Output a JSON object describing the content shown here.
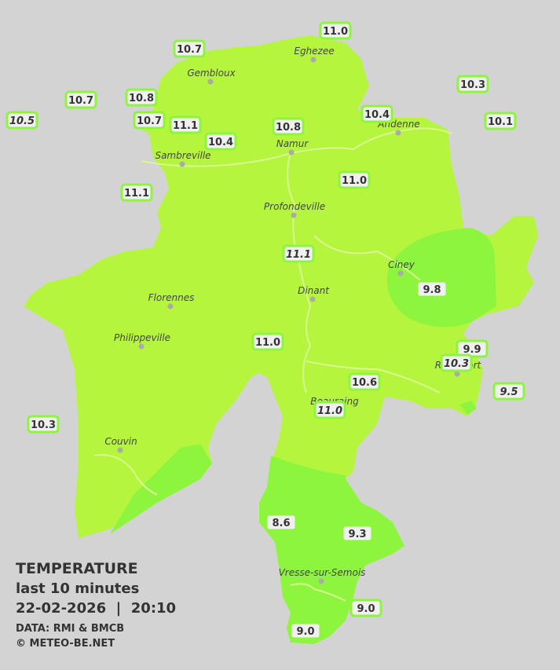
{
  "legend": {
    "title": "TEMPERATURE",
    "period": "last 10 minutes",
    "timestamp": "22-02-2026  |  20:10",
    "source": "DATA: RMI & BMCB",
    "copyright": "© METEO-BE.NET"
  },
  "towns": [
    {
      "name": "Eghezee"
    },
    {
      "name": "Gembloux"
    },
    {
      "name": "Andenne"
    },
    {
      "name": "Namur"
    },
    {
      "name": "Sambreville"
    },
    {
      "name": "Profondeville"
    },
    {
      "name": "Ciney"
    },
    {
      "name": "Florennes"
    },
    {
      "name": "Dinant"
    },
    {
      "name": "Philippeville"
    },
    {
      "name": "Rochefort"
    },
    {
      "name": "Beauraing"
    },
    {
      "name": "Couvin"
    },
    {
      "name": "Vresse-sur-Semois"
    }
  ],
  "readings": [
    {
      "value": "10.7",
      "italic": false
    },
    {
      "value": "11.0",
      "italic": false
    },
    {
      "value": "10.3",
      "italic": false
    },
    {
      "value": "10.7",
      "italic": false
    },
    {
      "value": "10.8",
      "italic": false
    },
    {
      "value": "10.5",
      "italic": true
    },
    {
      "value": "10.7",
      "italic": false
    },
    {
      "value": "11.1",
      "italic": false
    },
    {
      "value": "10.4",
      "italic": false
    },
    {
      "value": "10.8",
      "italic": false
    },
    {
      "value": "10.4",
      "italic": false
    },
    {
      "value": "10.1",
      "italic": false
    },
    {
      "value": "11.1",
      "italic": false
    },
    {
      "value": "11.0",
      "italic": false
    },
    {
      "value": "11.1",
      "italic": true
    },
    {
      "value": "9.8",
      "italic": false
    },
    {
      "value": "11.0",
      "italic": false
    },
    {
      "value": "9.9",
      "italic": false
    },
    {
      "value": "10.3",
      "italic": true
    },
    {
      "value": "10.6",
      "italic": false
    },
    {
      "value": "9.5",
      "italic": true
    },
    {
      "value": "11.0",
      "italic": true
    },
    {
      "value": "10.3",
      "italic": false
    },
    {
      "value": "8.6",
      "italic": false
    },
    {
      "value": "9.3",
      "italic": false
    },
    {
      "value": "9.0",
      "italic": false
    },
    {
      "value": "9.0",
      "italic": false
    }
  ]
}
